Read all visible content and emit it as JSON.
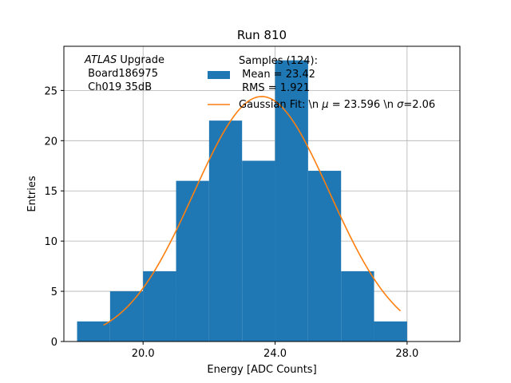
{
  "chart_data": {
    "type": "bar",
    "title": "Run 810",
    "xlabel": "Energy [ADC Counts]",
    "ylabel": "Entries",
    "xlim": [
      17.6,
      29.6
    ],
    "ylim": [
      0,
      29.4
    ],
    "grid": true,
    "xticks": [
      20,
      24,
      28
    ],
    "xtick_labels": [
      "20.0",
      "24.0",
      "28.0"
    ],
    "yticks": [
      0,
      5,
      10,
      15,
      20,
      25
    ],
    "ytick_labels": [
      "0",
      "5",
      "10",
      "15",
      "20",
      "25"
    ],
    "histogram": {
      "name": "Samples (124):\n Mean = 23.42\n RMS = 1.921",
      "color": "#1f77b4",
      "bin_edges": [
        18,
        19,
        20,
        21,
        22,
        23,
        24,
        25,
        26,
        27,
        28
      ],
      "values": [
        2,
        5,
        7,
        16,
        22,
        18,
        28,
        17,
        7,
        2
      ]
    },
    "fit": {
      "name": "Gaussian Fit: \\n $\\mu$ = 23.596 \\n $\\sigma$=2.06",
      "color": "#ff7f0e",
      "mu": 23.596,
      "sigma": 2.06,
      "amplitude": 24.4,
      "x_range": [
        18.8,
        27.8
      ]
    },
    "annotation": {
      "italic": "ATLAS",
      "rest": " Upgrade",
      "line2": " Board186975",
      "line3": " Ch019 35dB"
    },
    "legend": {
      "placement": "top-right",
      "hist_lines": [
        "Samples (124):",
        " Mean = 23.42",
        " RMS = 1.921"
      ],
      "fit_label_prefix": "Gaussian Fit: \\n ",
      "fit_mu_symbol": "μ",
      "fit_mid": " = 23.596 \\n ",
      "fit_sigma_symbol": "σ",
      "fit_suffix": "=2.06"
    }
  }
}
